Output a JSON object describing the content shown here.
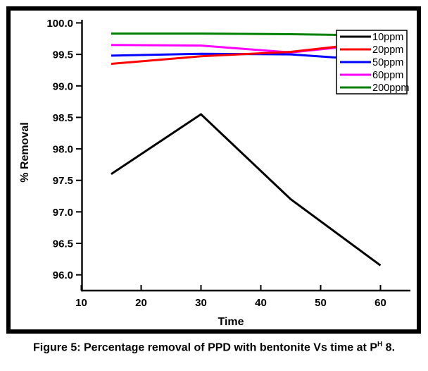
{
  "figure": {
    "caption": {
      "prefix": "Figure 5: Percentage removal of PPD with bentonite Vs time at P",
      "superscript": "H",
      "suffix": " 8."
    }
  },
  "chart_data": {
    "type": "line",
    "title": "",
    "xlabel": "Time",
    "ylabel": "% Removal",
    "x": [
      15,
      30,
      45,
      60
    ],
    "series": [
      {
        "name": "10ppm",
        "color": "#000000",
        "values": [
          97.6,
          98.55,
          97.2,
          96.15
        ]
      },
      {
        "name": "20ppm",
        "color": "#ff0000",
        "values": [
          99.35,
          99.47,
          99.54,
          99.7
        ]
      },
      {
        "name": "50ppm",
        "color": "#0000ff",
        "values": [
          99.48,
          99.51,
          99.5,
          99.4
        ]
      },
      {
        "name": "60ppm",
        "color": "#ff00ff",
        "values": [
          99.65,
          99.64,
          99.53,
          99.68
        ]
      },
      {
        "name": "200ppm",
        "color": "#008000",
        "values": [
          99.83,
          99.83,
          99.82,
          99.8
        ]
      }
    ],
    "x_ticks": [
      10,
      20,
      30,
      40,
      50,
      60
    ],
    "y_ticks": [
      96.0,
      96.5,
      97.0,
      97.5,
      98.0,
      98.5,
      99.0,
      99.5,
      100.0
    ],
    "xlim": [
      10,
      65
    ],
    "ylim": [
      95.75,
      100.05
    ],
    "grid": false,
    "legend_position": "top-right",
    "legend": [
      "10ppm",
      "20ppm",
      "50ppm",
      "60ppm",
      "200ppm"
    ],
    "axis_color": "#000000",
    "frame_color": "#000000"
  }
}
